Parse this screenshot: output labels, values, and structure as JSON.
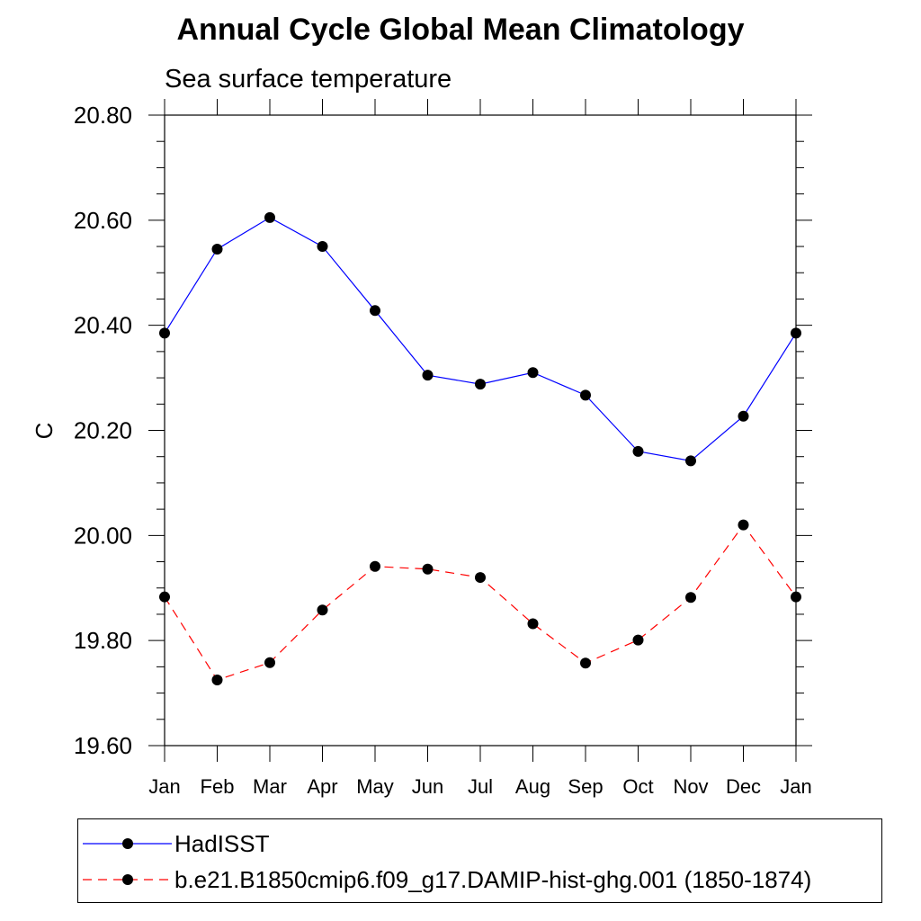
{
  "chart_data": {
    "type": "line",
    "title": "Annual Cycle Global Mean Climatology",
    "subtitle": "Sea surface temperature",
    "ylabel": "C",
    "xlabel": "",
    "categories": [
      "Jan",
      "Feb",
      "Mar",
      "Apr",
      "May",
      "Jun",
      "Jul",
      "Aug",
      "Sep",
      "Oct",
      "Nov",
      "Dec",
      "Jan"
    ],
    "ylim": [
      19.6,
      20.8
    ],
    "yticks": [
      "19.60",
      "19.80",
      "20.00",
      "20.20",
      "20.40",
      "20.60",
      "20.80"
    ],
    "series": [
      {
        "name": "HadISST",
        "color": "#0000ff",
        "dash": "solid",
        "marker": "filled-circle",
        "values": [
          20.385,
          20.545,
          20.605,
          20.55,
          20.428,
          20.305,
          20.288,
          20.31,
          20.267,
          20.16,
          20.142,
          20.227,
          20.385
        ]
      },
      {
        "name": "b.e21.B1850cmip6.f09_g17.DAMIP-hist-ghg.001 (1850-1874)",
        "color": "#ff0000",
        "dash": "dashed",
        "marker": "filled-circle",
        "values": [
          19.883,
          19.725,
          19.758,
          19.858,
          19.941,
          19.936,
          19.92,
          19.832,
          19.757,
          19.801,
          19.882,
          20.02,
          19.883
        ]
      }
    ],
    "grid": false,
    "legend_position": "bottom"
  }
}
